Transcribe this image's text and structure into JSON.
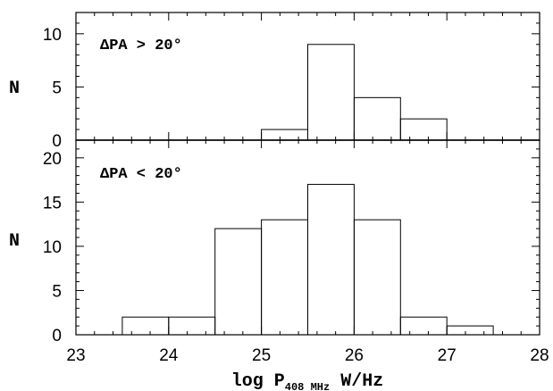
{
  "chart_data": [
    {
      "type": "bar",
      "panel": "top",
      "annotation": "ΔPA > 20°",
      "ylabel": "N",
      "xlabel": "",
      "xlim": [
        23,
        28
      ],
      "ylim": [
        0,
        12
      ],
      "yticks": [
        "0",
        "5",
        "10"
      ],
      "bin_edges": [
        23.5,
        24,
        24.5,
        25,
        25.5,
        26,
        26.5,
        27,
        27.5
      ],
      "values": [
        0,
        0,
        0,
        1,
        9,
        4,
        2,
        0
      ]
    },
    {
      "type": "bar",
      "panel": "bottom",
      "annotation": "ΔPA < 20°",
      "ylabel": "N",
      "xlabel": "log P408 MHz W/Hz",
      "xlabel_parts": {
        "pre": "log P",
        "sub": "408 MHz",
        "post": " W/Hz"
      },
      "xlim": [
        23,
        28
      ],
      "ylim": [
        0,
        22
      ],
      "yticks": [
        "0",
        "5",
        "10",
        "15",
        "20"
      ],
      "xticks": [
        "23",
        "24",
        "25",
        "26",
        "27",
        "28"
      ],
      "bin_edges": [
        23.5,
        24,
        24.5,
        25,
        25.5,
        26,
        26.5,
        27,
        27.5
      ],
      "values": [
        2,
        2,
        12,
        13,
        17,
        13,
        2,
        1
      ]
    }
  ]
}
